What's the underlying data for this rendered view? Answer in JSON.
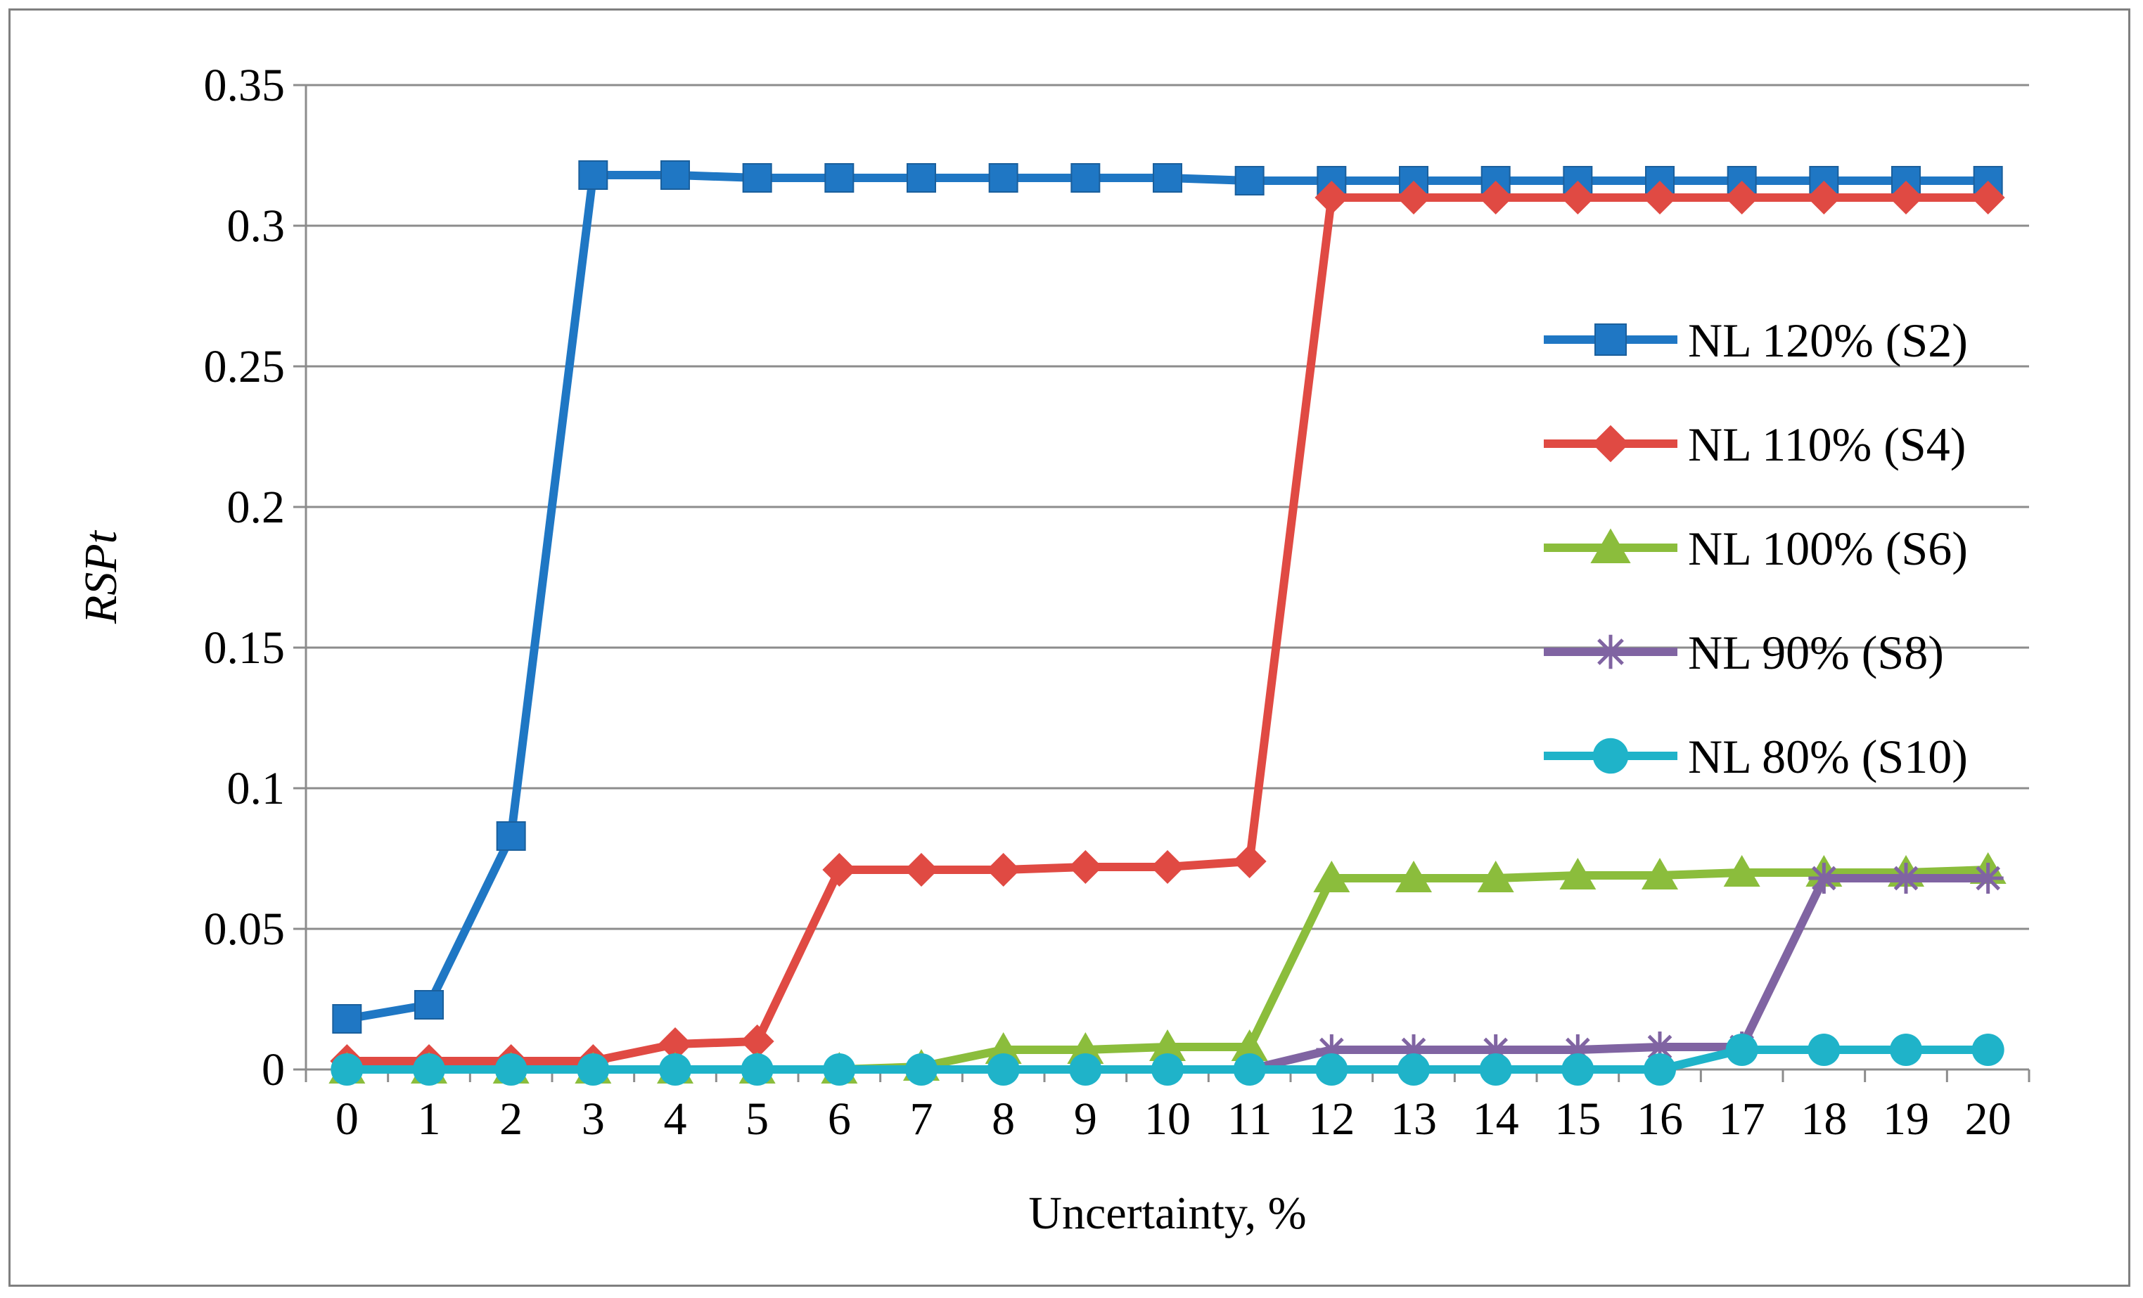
{
  "chart_data": {
    "type": "line",
    "title": "",
    "xlabel": "Uncertainty, %",
    "ylabel": "RSPt",
    "x": [
      0,
      1,
      2,
      3,
      4,
      5,
      6,
      7,
      8,
      9,
      10,
      11,
      12,
      13,
      14,
      15,
      16,
      17,
      18,
      19,
      20
    ],
    "x_tick_labels": [
      "0",
      "1",
      "2",
      "3",
      "4",
      "5",
      "6",
      "7",
      "8",
      "9",
      "10",
      "11",
      "12",
      "13",
      "14",
      "15",
      "16",
      "17",
      "18",
      "19",
      "20"
    ],
    "ylim": [
      0,
      0.35
    ],
    "y_ticks": [
      0,
      0.05,
      0.1,
      0.15,
      0.2,
      0.25,
      0.3,
      0.35
    ],
    "y_tick_labels": [
      "0",
      "0.05",
      "0.1",
      "0.15",
      "0.2",
      "0.25",
      "0.3",
      "0.35"
    ],
    "grid": "horizontal",
    "legend_position": "right",
    "series": [
      {
        "name": "NL 120% (S2)",
        "color": "#1f77c4",
        "marker": "square",
        "values": [
          0.018,
          0.023,
          0.083,
          0.318,
          0.318,
          0.317,
          0.317,
          0.317,
          0.317,
          0.317,
          0.317,
          0.316,
          0.316,
          0.316,
          0.316,
          0.316,
          0.316,
          0.316,
          0.316,
          0.316,
          0.316
        ]
      },
      {
        "name": "NL 110% (S4)",
        "color": "#e04a43",
        "marker": "diamond",
        "values": [
          0.003,
          0.003,
          0.003,
          0.003,
          0.009,
          0.01,
          0.071,
          0.071,
          0.071,
          0.072,
          0.072,
          0.074,
          0.31,
          0.31,
          0.31,
          0.31,
          0.31,
          0.31,
          0.31,
          0.31,
          0.31
        ]
      },
      {
        "name": "NL 100% (S6)",
        "color": "#8bbd3c",
        "marker": "triangle",
        "values": [
          0,
          0,
          0,
          0,
          0,
          0,
          0,
          0.001,
          0.007,
          0.007,
          0.008,
          0.008,
          0.068,
          0.068,
          0.068,
          0.069,
          0.069,
          0.07,
          0.07,
          0.07,
          0.071
        ]
      },
      {
        "name": "NL 90% (S8)",
        "color": "#8064a2",
        "marker": "star",
        "values": [
          0,
          0,
          0,
          0,
          0,
          0,
          0,
          0,
          0,
          0,
          0,
          0,
          0.007,
          0.007,
          0.007,
          0.007,
          0.008,
          0.008,
          0.068,
          0.068,
          0.068
        ]
      },
      {
        "name": "NL 80% (S10)",
        "color": "#1fb3c9",
        "marker": "circle",
        "values": [
          0,
          0,
          0,
          0,
          0,
          0,
          0,
          0,
          0,
          0,
          0,
          0,
          0,
          0,
          0,
          0,
          0,
          0.007,
          0.007,
          0.007,
          0.007
        ]
      }
    ]
  }
}
